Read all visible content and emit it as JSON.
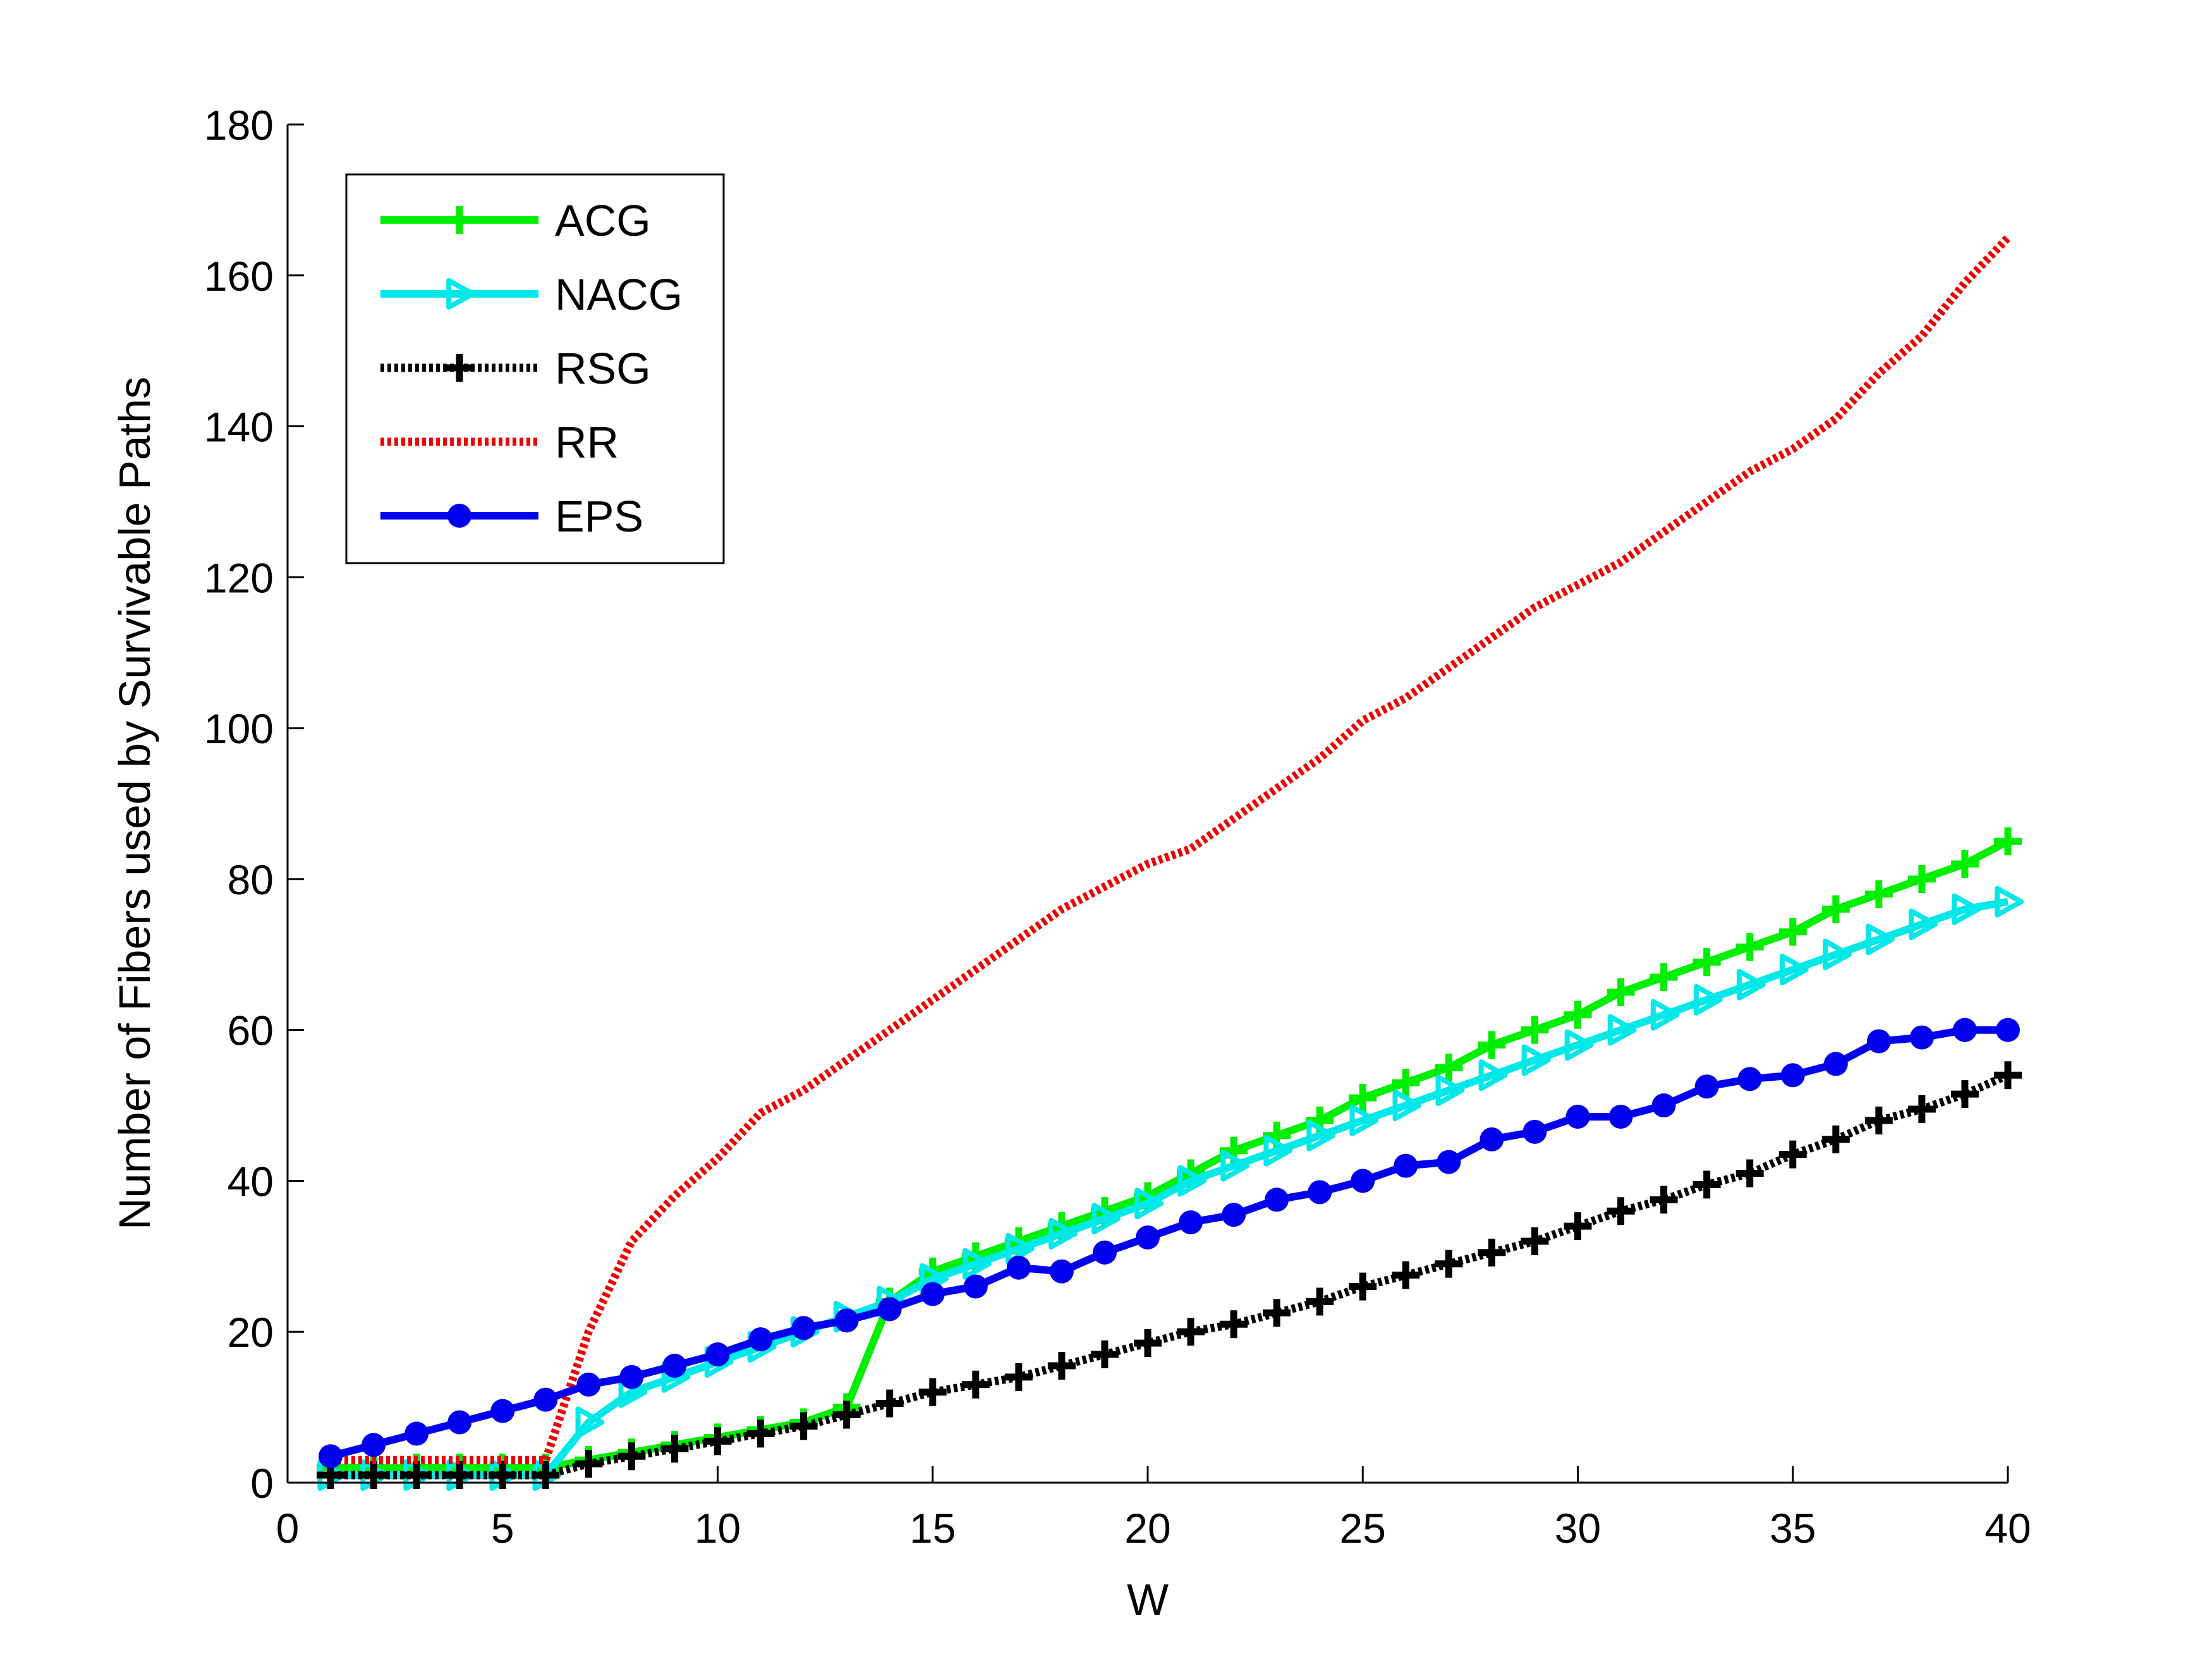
{
  "chart_data": {
    "type": "line",
    "title": "",
    "xlabel": "W",
    "ylabel": "Number of Fibers used by Survivable Paths",
    "xlim": [
      0,
      40
    ],
    "ylim": [
      0,
      180
    ],
    "xticks": [
      0,
      5,
      10,
      15,
      20,
      25,
      30,
      35,
      40
    ],
    "yticks": [
      0,
      20,
      40,
      60,
      80,
      100,
      120,
      140,
      160,
      180
    ],
    "grid": false,
    "legend_position": "top-left",
    "x": [
      1,
      2,
      3,
      4,
      5,
      6,
      7,
      8,
      9,
      10,
      11,
      12,
      13,
      14,
      15,
      16,
      17,
      18,
      19,
      20,
      21,
      22,
      23,
      24,
      25,
      26,
      27,
      28,
      29,
      30,
      31,
      32,
      33,
      34,
      35,
      36,
      37,
      38,
      39,
      40
    ],
    "series": [
      {
        "name": "ACG",
        "color": "#00ee00",
        "style": "solid",
        "marker": "plus",
        "values": [
          2,
          2,
          2,
          2,
          2,
          2,
          3,
          4,
          5,
          6,
          7,
          8,
          10,
          24,
          28,
          30,
          32,
          34,
          36,
          38,
          41,
          44,
          46,
          48,
          51,
          53,
          55,
          58,
          60,
          62,
          65,
          67,
          69,
          71,
          73,
          76,
          78,
          80,
          82,
          85
        ]
      },
      {
        "name": "NACG",
        "color": "#00e8e8",
        "style": "solid",
        "marker": "triangle-right",
        "values": [
          1,
          1,
          1,
          1,
          1,
          1,
          8,
          12,
          14,
          16,
          18,
          20,
          22,
          24,
          27,
          29,
          31,
          33,
          35,
          37,
          40,
          42,
          44,
          46,
          48,
          50,
          52,
          54,
          56,
          58,
          60,
          62,
          64,
          66,
          68,
          70,
          72,
          74,
          76,
          77
        ]
      },
      {
        "name": "RSG",
        "color": "#000000",
        "style": "dotted",
        "marker": "plus",
        "values": [
          1,
          1,
          1,
          1,
          1,
          1,
          2.5,
          3.5,
          4.5,
          5.5,
          6.5,
          7.5,
          9,
          10.5,
          12,
          13,
          14,
          15.5,
          17,
          18.5,
          20,
          21,
          22.5,
          24,
          26,
          27.5,
          29,
          30.5,
          32,
          34,
          36,
          37.5,
          39.5,
          41,
          43.5,
          45.5,
          48,
          49.5,
          51.5,
          54
        ]
      },
      {
        "name": "RR",
        "color": "#ee0000",
        "style": "dotted",
        "marker": "none",
        "values": [
          3,
          3,
          3,
          3,
          3,
          3,
          20,
          32,
          38,
          43,
          49,
          52,
          56,
          60,
          64,
          68,
          72,
          76,
          79,
          82,
          84,
          88,
          92,
          96,
          101,
          104,
          108,
          112,
          116,
          119,
          122,
          126,
          130,
          134,
          137,
          141,
          147,
          152,
          159,
          165
        ]
      },
      {
        "name": "EPS",
        "color": "#0000ee",
        "style": "solid",
        "marker": "circle",
        "values": [
          3.5,
          5,
          6.5,
          8,
          9.5,
          11,
          13,
          14,
          15.5,
          17,
          19,
          20.5,
          21.5,
          23,
          25,
          26,
          28.5,
          28,
          30.5,
          32.5,
          34.5,
          35.5,
          37.5,
          38.5,
          40,
          42,
          42.5,
          45.5,
          46.5,
          48.5,
          48.5,
          50,
          52.5,
          53.5,
          54,
          55.5,
          58.5,
          59,
          60,
          60
        ]
      }
    ]
  }
}
